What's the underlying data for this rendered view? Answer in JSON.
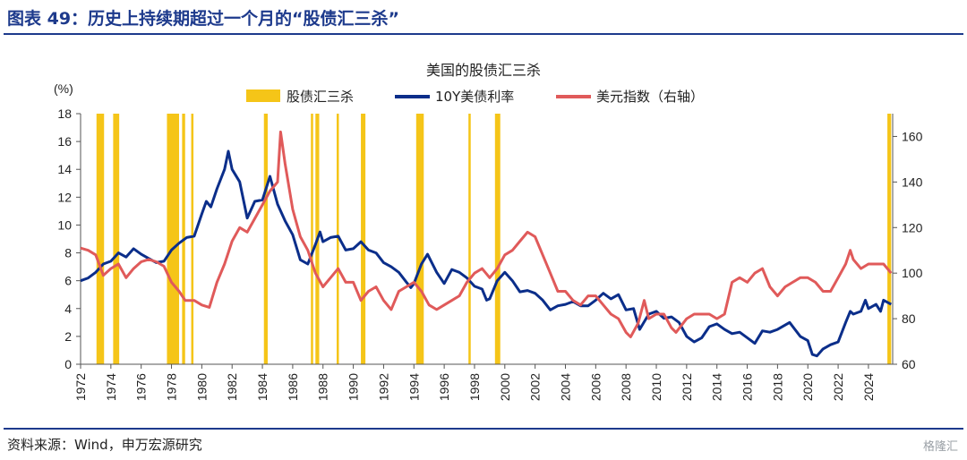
{
  "page": {
    "figure_title": "图表 49：历史上持续期超过一个月的“股债汇三杀”",
    "source_note": "资料来源：Wind，申万宏源研究",
    "watermark": "格隆汇"
  },
  "chart_data": {
    "type": "line",
    "title": "美国的股债汇三杀",
    "left_axis_unit": "(%)",
    "ylim": [
      0,
      18
    ],
    "y_ticks": [
      0,
      2,
      4,
      6,
      8,
      10,
      12,
      14,
      16,
      18
    ],
    "y2lim": [
      60,
      170
    ],
    "y2_ticks": [
      60,
      80,
      100,
      120,
      140,
      160
    ],
    "xlim": [
      1972,
      2025.6
    ],
    "x_ticks": [
      "1972",
      "1974",
      "1976",
      "1978",
      "1980",
      "1982",
      "1984",
      "1986",
      "1988",
      "1990",
      "1992",
      "1994",
      "1996",
      "1998",
      "2000",
      "2002",
      "2004",
      "2006",
      "2008",
      "2010",
      "2012",
      "2014",
      "2016",
      "2018",
      "2020",
      "2022",
      "2024"
    ],
    "legend": [
      "股债汇三杀",
      "10Y美债利率",
      "美元指数（右轴）"
    ],
    "colors": {
      "shade": "#f5c518",
      "yield": "#0b2e8a",
      "dollar": "#e05a5a",
      "axis": "#1d3a8c"
    },
    "triple_kill_periods": [
      [
        1973.05,
        1973.55
      ],
      [
        1974.15,
        1974.55
      ],
      [
        1977.7,
        1978.5
      ],
      [
        1978.7,
        1978.9
      ],
      [
        1979.3,
        1979.45
      ],
      [
        1984.1,
        1984.35
      ],
      [
        1987.2,
        1987.35
      ],
      [
        1987.5,
        1987.75
      ],
      [
        1988.9,
        1989.05
      ],
      [
        1990.5,
        1990.8
      ],
      [
        1994.15,
        1994.65
      ],
      [
        1997.6,
        1997.75
      ],
      [
        1999.35,
        1999.7
      ],
      [
        2025.25,
        2025.5
      ]
    ],
    "series": [
      {
        "name": "10Y美债利率",
        "axis": "left",
        "x": [
          1972.0,
          1972.5,
          1973.0,
          1973.5,
          1974.0,
          1974.5,
          1975.0,
          1975.5,
          1976.0,
          1976.5,
          1977.0,
          1977.5,
          1978.0,
          1978.5,
          1979.0,
          1979.5,
          1980.0,
          1980.3,
          1980.6,
          1981.0,
          1981.5,
          1981.75,
          1982.0,
          1982.5,
          1983.0,
          1983.5,
          1984.0,
          1984.5,
          1985.0,
          1985.5,
          1986.0,
          1986.5,
          1987.0,
          1987.5,
          1987.8,
          1988.0,
          1988.5,
          1989.0,
          1989.5,
          1990.0,
          1990.5,
          1991.0,
          1991.5,
          1992.0,
          1992.5,
          1993.0,
          1993.5,
          1993.8,
          1994.0,
          1994.5,
          1994.9,
          1995.5,
          1996.0,
          1996.5,
          1997.0,
          1997.5,
          1998.0,
          1998.5,
          1998.8,
          1999.0,
          1999.5,
          2000.0,
          2000.5,
          2001.0,
          2001.5,
          2002.0,
          2002.5,
          2003.0,
          2003.5,
          2004.0,
          2004.5,
          2005.0,
          2005.5,
          2006.0,
          2006.5,
          2007.0,
          2007.5,
          2008.0,
          2008.5,
          2008.9,
          2009.5,
          2010.0,
          2010.5,
          2011.0,
          2011.5,
          2012.0,
          2012.5,
          2013.0,
          2013.5,
          2014.0,
          2014.5,
          2015.0,
          2015.5,
          2016.0,
          2016.5,
          2017.0,
          2017.5,
          2018.0,
          2018.8,
          2019.5,
          2020.0,
          2020.3,
          2020.6,
          2021.0,
          2021.5,
          2022.0,
          2022.5,
          2022.8,
          2023.0,
          2023.5,
          2023.8,
          2024.0,
          2024.5,
          2024.8,
          2025.0,
          2025.5
        ],
        "values": [
          6.0,
          6.2,
          6.6,
          7.2,
          7.4,
          8.0,
          7.7,
          8.3,
          7.9,
          7.6,
          7.3,
          7.4,
          8.2,
          8.7,
          9.1,
          9.2,
          10.8,
          11.7,
          11.3,
          12.6,
          14.0,
          15.3,
          14.0,
          13.1,
          10.5,
          11.7,
          11.8,
          13.5,
          11.5,
          10.3,
          9.3,
          7.5,
          7.2,
          8.6,
          9.5,
          8.8,
          9.1,
          9.2,
          8.2,
          8.3,
          8.8,
          8.2,
          8.0,
          7.3,
          7.0,
          6.6,
          5.9,
          5.5,
          5.8,
          7.2,
          7.9,
          6.6,
          5.8,
          6.8,
          6.6,
          6.2,
          5.6,
          5.4,
          4.6,
          4.7,
          6.0,
          6.6,
          6.0,
          5.2,
          5.3,
          5.1,
          4.6,
          3.9,
          4.2,
          4.3,
          4.5,
          4.2,
          4.2,
          4.6,
          5.1,
          4.7,
          5.0,
          3.9,
          4.0,
          2.5,
          3.6,
          3.8,
          3.3,
          3.4,
          3.0,
          2.0,
          1.6,
          1.9,
          2.7,
          2.9,
          2.5,
          2.2,
          2.3,
          1.9,
          1.5,
          2.4,
          2.3,
          2.5,
          3.0,
          2.0,
          1.7,
          0.7,
          0.6,
          1.1,
          1.4,
          1.6,
          3.0,
          3.8,
          3.6,
          3.8,
          4.6,
          4.0,
          4.3,
          3.8,
          4.6,
          4.3
        ]
      },
      {
        "name": "美元指数（右轴）",
        "axis": "right",
        "x": [
          1972.0,
          1972.5,
          1973.0,
          1973.5,
          1974.0,
          1974.5,
          1975.0,
          1975.5,
          1976.0,
          1976.5,
          1977.0,
          1977.5,
          1978.0,
          1978.5,
          1978.9,
          1979.5,
          1980.0,
          1980.5,
          1981.0,
          1981.5,
          1982.0,
          1982.5,
          1983.0,
          1983.5,
          1984.0,
          1984.5,
          1985.0,
          1985.2,
          1985.5,
          1986.0,
          1986.5,
          1987.0,
          1987.5,
          1988.0,
          1988.5,
          1989.0,
          1989.5,
          1990.0,
          1990.5,
          1991.0,
          1991.5,
          1992.0,
          1992.5,
          1993.0,
          1993.5,
          1994.0,
          1994.5,
          1995.0,
          1995.5,
          1996.0,
          1996.5,
          1997.0,
          1997.5,
          1998.0,
          1998.5,
          1999.0,
          1999.5,
          2000.0,
          2000.5,
          2001.0,
          2001.5,
          2002.0,
          2002.5,
          2003.0,
          2003.5,
          2004.0,
          2004.5,
          2005.0,
          2005.5,
          2006.0,
          2006.5,
          2007.0,
          2007.5,
          2008.0,
          2008.3,
          2008.8,
          2009.2,
          2009.5,
          2010.0,
          2010.5,
          2011.0,
          2011.3,
          2012.0,
          2012.5,
          2013.0,
          2013.5,
          2014.0,
          2014.5,
          2015.0,
          2015.5,
          2016.0,
          2016.5,
          2017.0,
          2017.5,
          2018.0,
          2018.5,
          2019.0,
          2019.5,
          2020.0,
          2020.5,
          2021.0,
          2021.5,
          2022.0,
          2022.5,
          2022.8,
          2023.0,
          2023.5,
          2024.0,
          2024.5,
          2025.0,
          2025.5
        ],
        "values": [
          111,
          110,
          108,
          99,
          102,
          104,
          98,
          102,
          105,
          106,
          105,
          103,
          96,
          92,
          88,
          88,
          86,
          85,
          96,
          104,
          114,
          120,
          118,
          124,
          130,
          136,
          140,
          162,
          148,
          128,
          116,
          110,
          100,
          94,
          98,
          102,
          96,
          96,
          88,
          92,
          94,
          88,
          84,
          92,
          94,
          96,
          92,
          86,
          84,
          86,
          88,
          90,
          96,
          100,
          102,
          98,
          102,
          108,
          110,
          114,
          118,
          116,
          108,
          100,
          92,
          92,
          88,
          86,
          90,
          90,
          86,
          82,
          80,
          74,
          72,
          78,
          88,
          80,
          82,
          82,
          76,
          74,
          80,
          82,
          82,
          82,
          80,
          82,
          96,
          98,
          96,
          100,
          102,
          94,
          90,
          94,
          96,
          98,
          98,
          96,
          92,
          92,
          98,
          104,
          110,
          106,
          102,
          104,
          104,
          104,
          100
        ]
      }
    ]
  }
}
